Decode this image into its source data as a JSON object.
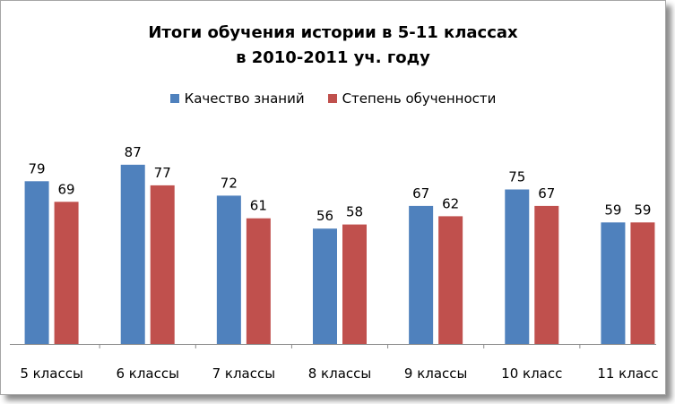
{
  "chart_data": {
    "type": "bar",
    "title_lines": [
      "Итоги обучения истории в 5-11 классах",
      "в 2010-2011 уч. году"
    ],
    "categories": [
      "5 классы",
      "6 классы",
      "7 классы",
      "8 классы",
      "9 классы",
      "10 класс",
      "11 класс"
    ],
    "series": [
      {
        "name": "Качество знаний",
        "color": "#4f81bd",
        "values": [
          79,
          87,
          72,
          56,
          67,
          75,
          59
        ]
      },
      {
        "name": "Степень обученности",
        "color": "#c0504d",
        "values": [
          69,
          77,
          61,
          58,
          62,
          67,
          59
        ]
      }
    ],
    "ylim": [
      0,
      100
    ],
    "grid": false,
    "legend_position": "top",
    "data_labels": true,
    "y_axis_visible": false
  }
}
